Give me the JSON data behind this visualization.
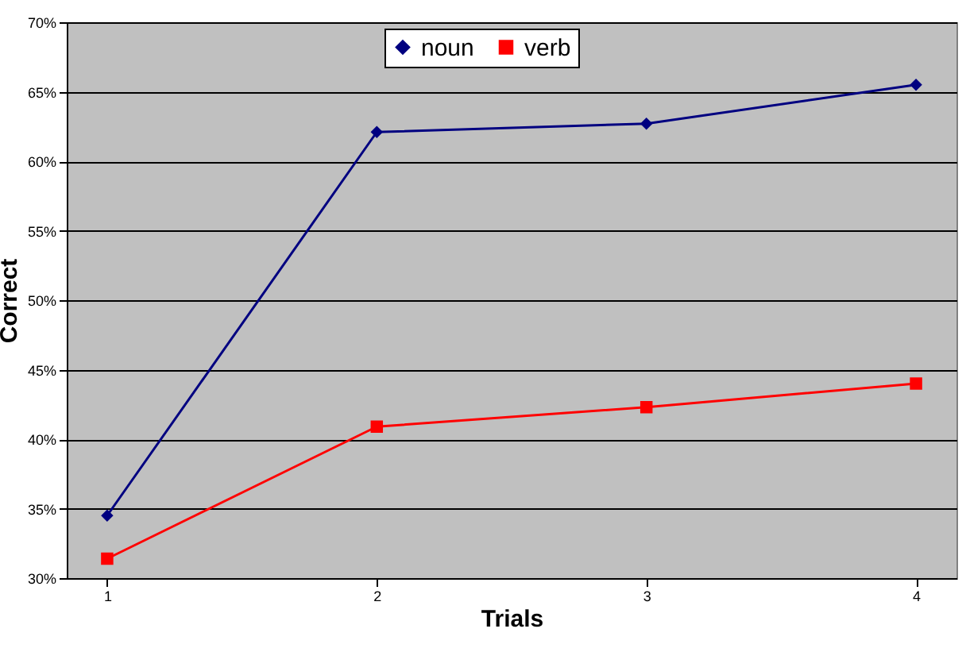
{
  "chart_data": {
    "type": "line",
    "xlabel": "Trials",
    "ylabel": "Correct",
    "categories": [
      "1",
      "2",
      "3",
      "4"
    ],
    "series": [
      {
        "name": "noun",
        "color": "#000080",
        "marker": "diamond",
        "values": [
          34.5,
          62.1,
          62.7,
          65.5
        ]
      },
      {
        "name": "verb",
        "color": "#ff0000",
        "marker": "square",
        "values": [
          31.4,
          40.9,
          42.3,
          44.0
        ]
      }
    ],
    "ylim": [
      30,
      70
    ],
    "yticks": [
      {
        "value": 30,
        "label": "30%"
      },
      {
        "value": 35,
        "label": "35%"
      },
      {
        "value": 40,
        "label": "40%"
      },
      {
        "value": 45,
        "label": "45%"
      },
      {
        "value": 50,
        "label": "50%"
      },
      {
        "value": 55,
        "label": "55%"
      },
      {
        "value": 60,
        "label": "60%"
      },
      {
        "value": 65,
        "label": "65%"
      },
      {
        "value": 70,
        "label": "70%"
      }
    ],
    "grid": "y",
    "legend": "top",
    "line_style": "solid"
  }
}
